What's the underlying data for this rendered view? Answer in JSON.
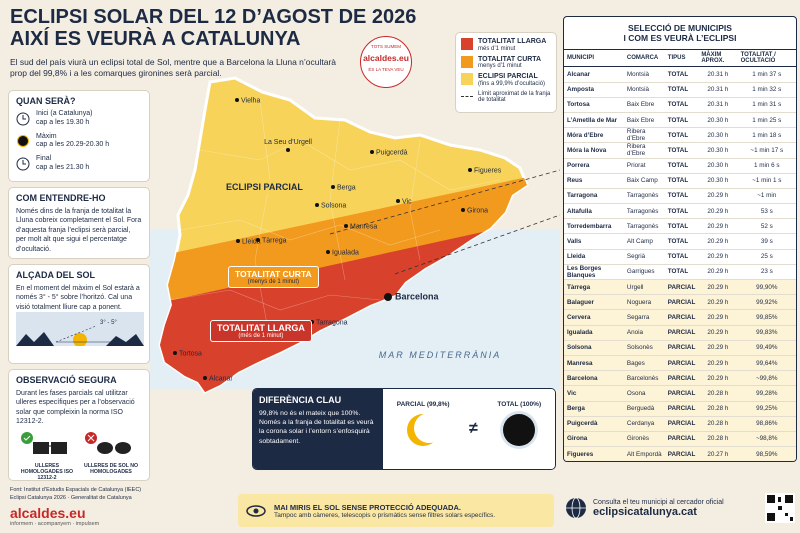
{
  "header": {
    "title_line1": "ECLIPSI SOLAR DEL 12 D’AGOST DE 2026",
    "title_line2": "AIXÍ ES VEURÀ A CATALUNYA",
    "subtitle": "El sud del país viurà un eclipsi total de Sol, mentre que a Barcelona la Lluna n’ocultarà prop del 99,8% i a les comarques gironines serà parcial."
  },
  "badge": {
    "top": "TOTS SUMEM",
    "brand": "alcaldes.eu",
    "bottom": "ÉS LA TEVA VEU"
  },
  "when": {
    "title": "QUAN SERÀ?",
    "items": [
      {
        "label": "Inici (a Catalunya)",
        "time": "cap a les 19.30 h"
      },
      {
        "label": "Màxim",
        "time": "cap a les 20.29-20.30 h"
      },
      {
        "label": "Final",
        "time": "cap a les 21.30 h"
      }
    ]
  },
  "understand": {
    "title": "COM ENTENDRE-HO",
    "text": "Només dins de la franja de totalitat la Lluna cobreix completament el Sol. Fora d’aquesta franja l’eclipsi serà parcial, per molt alt que sigui el percentatge d’ocultació."
  },
  "altitude": {
    "title": "ALÇADA DEL SOL",
    "text": "En el moment del màxim el Sol estarà a només 3° - 5° sobre l’horitzó. Cal una visió totalment lliure cap a ponent.",
    "angle": "3° - 5°"
  },
  "safe": {
    "title": "OBSERVACIÓ SEGURA",
    "text": "Durant les fases parcials cal utilitzar ulleres específiques per a l’observació solar que compleixin la norma ISO 12312-2.",
    "ok": "ULLERES HOMOLOGADES ISO 12312-2",
    "no": "ULLERES DE SOL NO HOMOLOGADES"
  },
  "sources": {
    "line1": "Font: Institut d’Estudis Espacials de Catalunya (IEEC)",
    "line2": "Eclipsi Catalunya 2026 · Generalitat de Catalunya"
  },
  "logo": {
    "name": "alcaldes.eu",
    "tagline": "informem · acompanyem · impulsem"
  },
  "legend": [
    {
      "title": "TOTALITAT LLARGA",
      "note": "més d’1 minut"
    },
    {
      "title": "TOTALITAT CURTA",
      "note": "menys d’1 minut"
    },
    {
      "title": "ECLIPSI PARCIAL",
      "note": "(fins a 99,9% d’ocultació)"
    },
    {
      "title": "Límit aproximat de la franja de totalitat"
    }
  ],
  "map": {
    "partial": "ECLIPSI PARCIAL",
    "short": "TOTALITAT CURTA",
    "short_note": "(menys de 1 minut)",
    "long": "TOTALITAT LLARGA",
    "long_note": "(més de 1 minut)",
    "sea": "MAR MEDITERRÀNIA",
    "cities": [
      "Vielha",
      "La Seu d’Urgell",
      "Puigcerdà",
      "Figueres",
      "Berga",
      "Vic",
      "Solsona",
      "Girona",
      "Manresa",
      "Lleida",
      "Tàrrega",
      "Igualada",
      "Barcelona",
      "Tarragona",
      "Tortosa",
      "Alcanar"
    ]
  },
  "difference": {
    "title": "DIFERÈNCIA CLAU",
    "text": "99,8% no és el mateix que 100%. Només a la franja de totalitat es veurà la corona solar i l’entorn s’enfosquirà sobtadament.",
    "partial": "PARCIAL (99,8%)",
    "total": "TOTAL (100%)",
    "sign": "≠"
  },
  "warning": {
    "title": "MAI MIRIS EL SOL SENSE PROTECCIÓ ADEQUADA.",
    "text": "Tampoc amb càmeres, telescopis o prismàtics sense filtres solars específics."
  },
  "consult": {
    "text": "Consulta el teu municipi al cercador oficial",
    "url": "eclipsicatalunya.cat"
  },
  "table": {
    "title_line1": "SELECCIÓ DE MUNICIPIS",
    "title_line2": "I COM ES VEURÀ L’ECLIPSI",
    "columns": [
      "MUNICIPI",
      "COMARCA",
      "TIPUS",
      "MÀXIM APROX.",
      "TOTALITAT / OCULTACIÓ"
    ],
    "rows": [
      [
        "Alcanar",
        "Montsià",
        "TOTAL",
        "20.31 h",
        "1 min 37 s"
      ],
      [
        "Amposta",
        "Montsià",
        "TOTAL",
        "20.31 h",
        "1 min 32 s"
      ],
      [
        "Tortosa",
        "Baix Ebre",
        "TOTAL",
        "20.31 h",
        "1 min 31 s"
      ],
      [
        "L’Ametlla de Mar",
        "Baix Ebre",
        "TOTAL",
        "20.30 h",
        "1 min 25 s"
      ],
      [
        "Móra d’Ebre",
        "Ribera d’Ebre",
        "TOTAL",
        "20.30 h",
        "1 min 18 s"
      ],
      [
        "Móra la Nova",
        "Ribera d’Ebre",
        "TOTAL",
        "20.30 h",
        "~1 min 17 s"
      ],
      [
        "Porrera",
        "Priorat",
        "TOTAL",
        "20.30 h",
        "1 min 6 s"
      ],
      [
        "Reus",
        "Baix Camp",
        "TOTAL",
        "20.30 h",
        "~1 min 1 s"
      ],
      [
        "Tarragona",
        "Tarragonès",
        "TOTAL",
        "20.29 h",
        "~1 min"
      ],
      [
        "Altafulla",
        "Tarragonès",
        "TOTAL",
        "20.29 h",
        "53 s"
      ],
      [
        "Torredembarra",
        "Tarragonès",
        "TOTAL",
        "20.29 h",
        "52 s"
      ],
      [
        "Valls",
        "Alt Camp",
        "TOTAL",
        "20.29 h",
        "39 s"
      ],
      [
        "Lleida",
        "Segrià",
        "TOTAL",
        "20.29 h",
        "25 s"
      ],
      [
        "Les Borges Blanques",
        "Garrigues",
        "TOTAL",
        "20.29 h",
        "23 s"
      ],
      [
        "Tàrrega",
        "Urgell",
        "PARCIAL",
        "20.29 h",
        "99,90%"
      ],
      [
        "Balaguer",
        "Noguera",
        "PARCIAL",
        "20.29 h",
        "99,92%"
      ],
      [
        "Cervera",
        "Segarra",
        "PARCIAL",
        "20.29 h",
        "99,85%"
      ],
      [
        "Igualada",
        "Anoia",
        "PARCIAL",
        "20.29 h",
        "99,83%"
      ],
      [
        "Solsona",
        "Solsonès",
        "PARCIAL",
        "20.29 h",
        "99,49%"
      ],
      [
        "Manresa",
        "Bages",
        "PARCIAL",
        "20.29 h",
        "99,64%"
      ],
      [
        "Barcelona",
        "Barcelonès",
        "PARCIAL",
        "20.29 h",
        "~99,8%"
      ],
      [
        "Vic",
        "Osona",
        "PARCIAL",
        "20.28 h",
        "99,28%"
      ],
      [
        "Berga",
        "Berguedà",
        "PARCIAL",
        "20.28 h",
        "99,25%"
      ],
      [
        "Puigcerdà",
        "Cerdanya",
        "PARCIAL",
        "20.28 h",
        "98,86%"
      ],
      [
        "Girona",
        "Gironès",
        "PARCIAL",
        "20.28 h",
        "~98,8%"
      ],
      [
        "Figueres",
        "Alt Empordà",
        "PARCIAL",
        "20.27 h",
        "98,59%"
      ]
    ]
  }
}
